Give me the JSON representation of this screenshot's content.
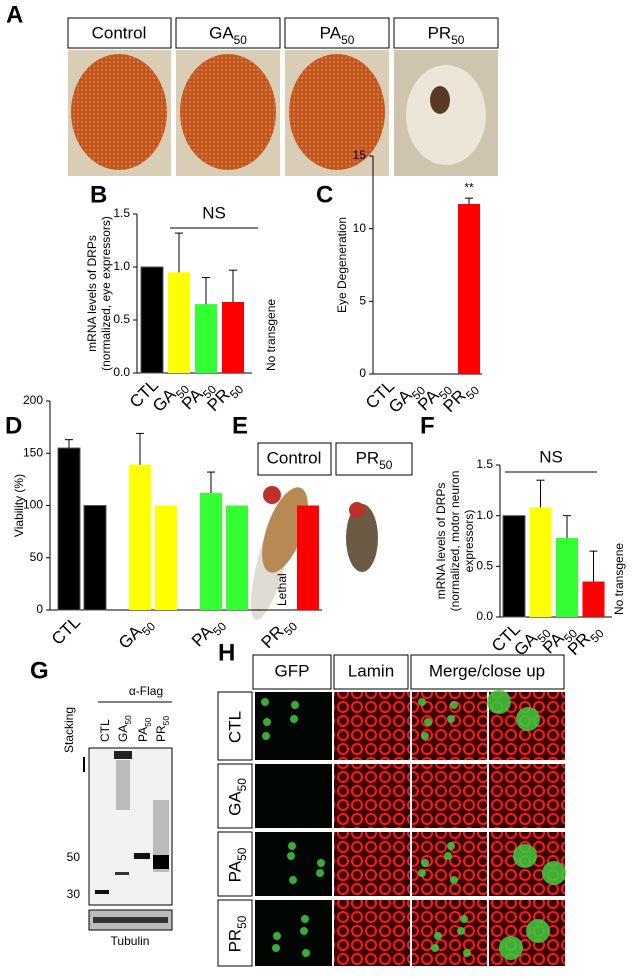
{
  "panel_labels": [
    "A",
    "B",
    "C",
    "D",
    "E",
    "F",
    "G",
    "H"
  ],
  "panel_a": {
    "headers": [
      "Control",
      "GA50",
      "PA50",
      "PR50"
    ]
  },
  "chart_data": [
    {
      "type": "bar",
      "categories": [
        "CTL",
        "GA50",
        "PA50",
        "PR50"
      ],
      "values": [
        1.0,
        0.95,
        0.65,
        0.67
      ],
      "errors": [
        null,
        0.37,
        0.25,
        0.3
      ],
      "colors": [
        "#000000",
        "#ffff00",
        "#33ff33",
        "#ff0000"
      ],
      "ylabel": [
        "mRNA levels of DRPs",
        "(normalized, eye expressors)"
      ],
      "ylim": [
        0,
        1.5
      ],
      "yticks": [
        {
          "value": 0,
          "label": "0.0"
        },
        {
          "value": 0.5,
          "label": "0.5"
        },
        {
          "value": 1,
          "label": "1.0"
        },
        {
          "value": 1.5,
          "label": "1.5"
        }
      ],
      "significance": "NS",
      "note": "No transgene"
    },
    {
      "type": "bar",
      "categories": [
        "CTL",
        "GA50",
        "PA50",
        "PR50"
      ],
      "values": [
        0,
        0,
        0,
        11.7
      ],
      "errors": [
        null,
        null,
        null,
        0.4
      ],
      "colors": [
        "#000000",
        "#ffff00",
        "#33ff33",
        "#ff0000"
      ],
      "ylabel": [
        "Eye Degeneration"
      ],
      "ylim": [
        0,
        15
      ],
      "yticks": [
        0,
        5,
        10,
        15
      ],
      "significance": "**"
    },
    {
      "type": "grouped-bar",
      "categories": [
        "CTL",
        "GA50",
        "PA50",
        "PR50"
      ],
      "series": [
        {
          "values": [
            155,
            139,
            112,
            null
          ],
          "errors": [
            8,
            30,
            20,
            null
          ]
        },
        {
          "values": [
            100,
            100,
            100,
            100
          ]
        }
      ],
      "colors": [
        "#000000",
        "#ffff00",
        "#33ff33",
        "#ff0000"
      ],
      "ylabel": [
        "Viability (%)"
      ],
      "ylim": [
        0,
        200
      ],
      "yticks": [
        0,
        50,
        100,
        150,
        200
      ],
      "note": "Lethal"
    },
    {
      "type": "bar",
      "categories": [
        "CTL",
        "GA50",
        "PA50",
        "PR50"
      ],
      "values": [
        1.0,
        1.08,
        0.78,
        0.35
      ],
      "errors": [
        null,
        0.27,
        0.22,
        0.3
      ],
      "colors": [
        "#000000",
        "#ffff00",
        "#33ff33",
        "#ff0000"
      ],
      "ylabel": [
        "mRNA levels of DRPs",
        "(normalized, motor neuron",
        "expressors)"
      ],
      "ylim": [
        0,
        1.5
      ],
      "yticks": [
        {
          "value": 0,
          "label": "0.0"
        },
        {
          "value": 0.5,
          "label": "0.5"
        },
        {
          "value": 1,
          "label": "1.0"
        },
        {
          "value": 1.5,
          "label": "1.5"
        }
      ],
      "significance": "NS",
      "note": "No transgene"
    }
  ],
  "panel_e": {
    "labels": [
      "Control",
      "PR50"
    ]
  },
  "panel_g": {
    "antibody": "α-Flag",
    "lanes": [
      "CTL",
      "GA50",
      "PA50",
      "PR50"
    ],
    "stacking": "Stacking",
    "markers": [
      "50",
      "30"
    ],
    "loading": "Tubulin"
  },
  "panel_h": {
    "columns": [
      "GFP",
      "Lamin",
      "Merge/close up"
    ],
    "rows": [
      "CTL",
      "GA50",
      "PA50",
      "PR50"
    ]
  }
}
